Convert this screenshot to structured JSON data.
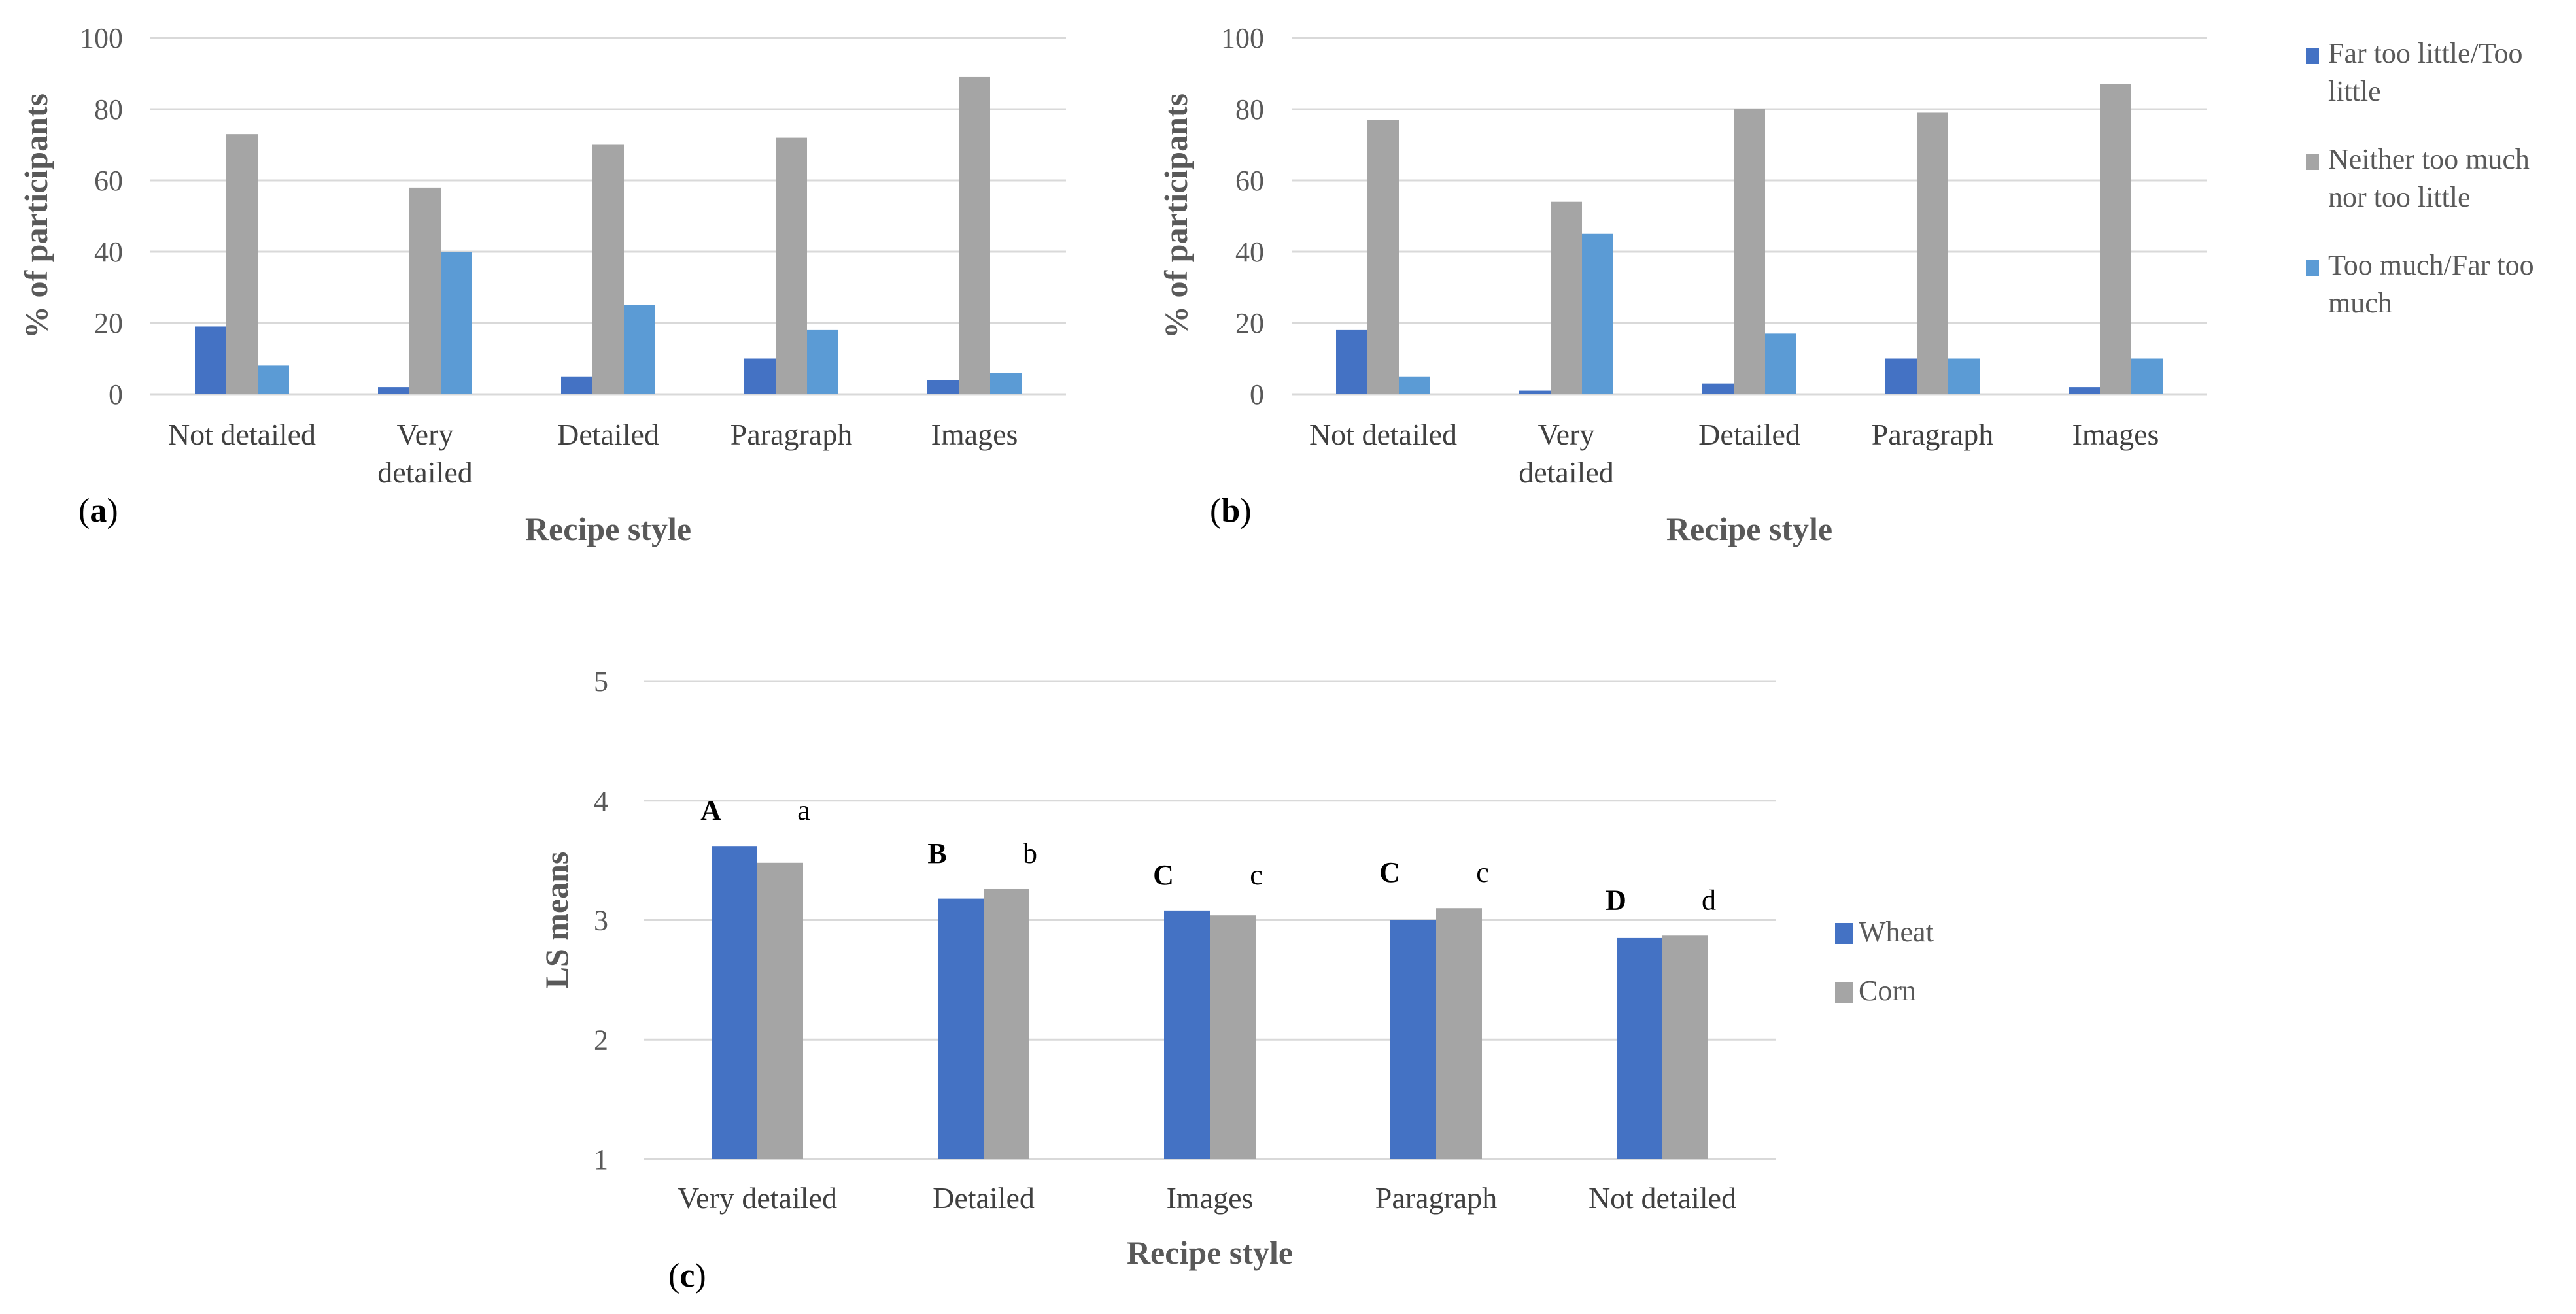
{
  "colors": {
    "far_too_little": "#4472c4",
    "neither": "#a5a5a5",
    "too_much": "#5b9bd5",
    "wheat": "#4472c4",
    "corn": "#a5a5a5"
  },
  "chart_data": [
    {
      "type": "bar",
      "panel_label": "a",
      "ylabel": "% of participants",
      "xlabel": "Recipe style",
      "ylim": [
        0,
        100
      ],
      "yticks": [
        0,
        20,
        40,
        60,
        80,
        100
      ],
      "categories": [
        [
          "Not detailed"
        ],
        [
          "Very",
          "detailed"
        ],
        [
          "Detailed"
        ],
        [
          "Paragraph"
        ],
        [
          "Images"
        ]
      ],
      "series": [
        {
          "name": "Far too little/Too little",
          "color": "#4472c4",
          "values": [
            19,
            2,
            5,
            10,
            4
          ]
        },
        {
          "name": "Neither too much nor too little",
          "color": "#a5a5a5",
          "values": [
            73,
            58,
            70,
            72,
            89
          ]
        },
        {
          "name": "Too much/Far too much",
          "color": "#5b9bd5",
          "values": [
            8,
            40,
            25,
            18,
            6
          ]
        }
      ],
      "grid": true
    },
    {
      "type": "bar",
      "panel_label": "b",
      "ylabel": "% of participants",
      "xlabel": "Recipe style",
      "ylim": [
        0,
        100
      ],
      "yticks": [
        0,
        20,
        40,
        60,
        80,
        100
      ],
      "categories": [
        [
          "Not detailed"
        ],
        [
          "Very",
          "detailed"
        ],
        [
          "Detailed"
        ],
        [
          "Paragraph"
        ],
        [
          "Images"
        ]
      ],
      "series": [
        {
          "name": "Far too little/Too little",
          "color": "#4472c4",
          "values": [
            18,
            1,
            3,
            10,
            2
          ]
        },
        {
          "name": "Neither too much nor too little",
          "color": "#a5a5a5",
          "values": [
            77,
            54,
            80,
            79,
            87
          ]
        },
        {
          "name": "Too much/Far too much",
          "color": "#5b9bd5",
          "values": [
            5,
            45,
            17,
            10,
            10
          ]
        }
      ],
      "legend": {
        "placement": "right",
        "entries": [
          [
            "Far too little/Too",
            "little"
          ],
          [
            "Neither too much",
            "nor too little"
          ],
          [
            "Too much/Far too",
            "much"
          ]
        ]
      },
      "grid": true
    },
    {
      "type": "bar",
      "panel_label": "c",
      "ylabel": "LS means",
      "xlabel": "Recipe style",
      "ylim": [
        1,
        5
      ],
      "yticks": [
        1,
        2,
        3,
        4,
        5
      ],
      "categories": [
        [
          "Very detailed"
        ],
        [
          "Detailed"
        ],
        [
          "Images"
        ],
        [
          "Paragraph"
        ],
        [
          "Not detailed"
        ]
      ],
      "series": [
        {
          "name": "Wheat",
          "color": "#4472c4",
          "values": [
            3.62,
            3.18,
            3.08,
            3.0,
            2.85
          ],
          "sig": [
            "A",
            "B",
            "C",
            "C",
            "D"
          ]
        },
        {
          "name": "Corn",
          "color": "#a5a5a5",
          "values": [
            3.48,
            3.26,
            3.04,
            3.1,
            2.87
          ],
          "sig": [
            "a",
            "b",
            "c",
            "c",
            "d"
          ]
        }
      ],
      "legend": {
        "placement": "right",
        "entries": [
          [
            "Wheat"
          ],
          [
            "Corn"
          ]
        ]
      },
      "grid": true
    }
  ]
}
